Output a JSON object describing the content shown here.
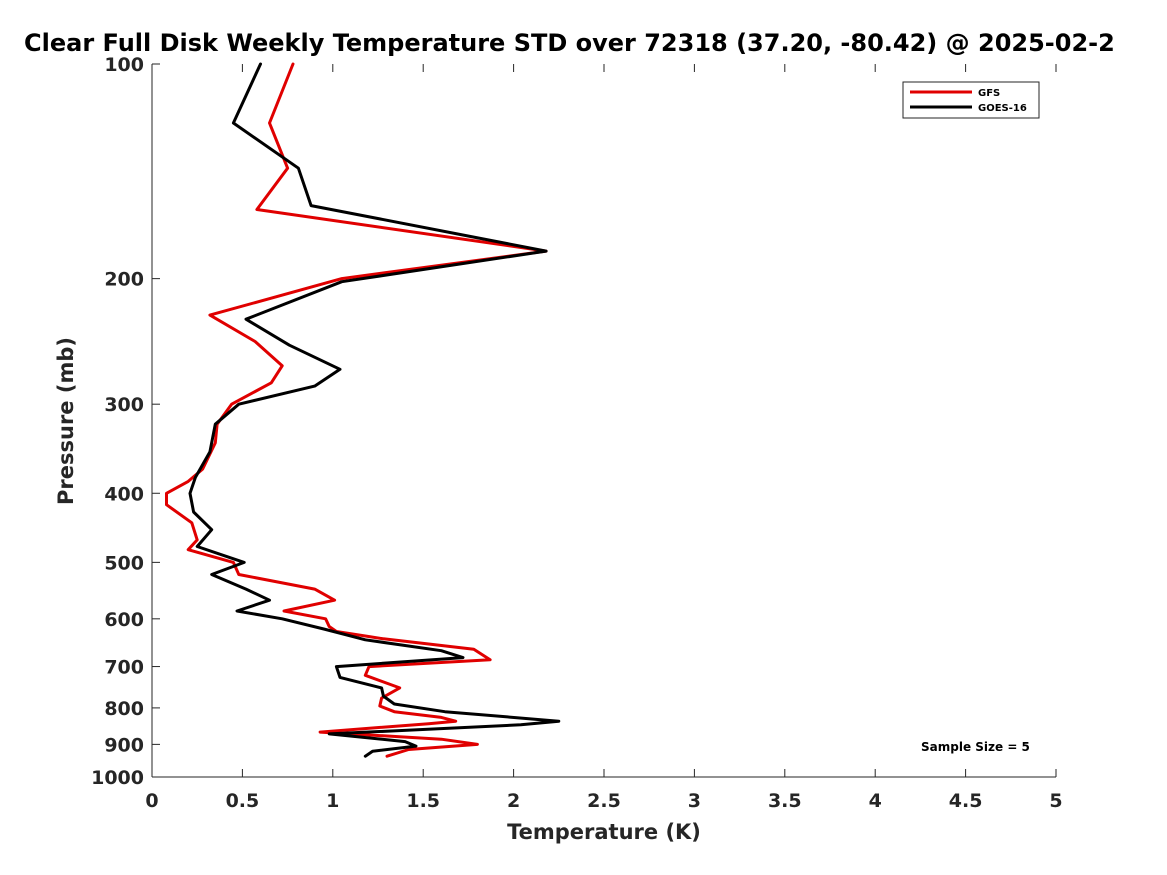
{
  "chart_data": {
    "type": "line",
    "title": "Clear Full Disk Weekly Temperature STD over 72318 (37.20, -80.42) @ 2025-02-2",
    "xlabel": "Temperature (K)",
    "ylabel": "Pressure (mb)",
    "xlim": [
      0,
      5
    ],
    "ylim": [
      100,
      1000
    ],
    "y_scale": "log",
    "y_direction": "reversed",
    "x_ticks": [
      0,
      0.5,
      1,
      1.5,
      2,
      2.5,
      3,
      3.5,
      4,
      4.5,
      5
    ],
    "x_tick_labels": [
      "0",
      "0.5",
      "1",
      "1.5",
      "2",
      "2.5",
      "3",
      "3.5",
      "4",
      "4.5",
      "5"
    ],
    "y_ticks": [
      100,
      200,
      300,
      400,
      500,
      600,
      700,
      800,
      900,
      1000
    ],
    "y_tick_labels": [
      "100",
      "200",
      "300",
      "400",
      "500",
      "600",
      "700",
      "800",
      "900",
      "1000"
    ],
    "grid": false,
    "legend_position": "top-right",
    "annotation": "Sample Size = 5",
    "series": [
      {
        "name": "GFS",
        "color": "#e00000",
        "points": [
          [
            0.78,
            100
          ],
          [
            0.65,
            121
          ],
          [
            0.75,
            140
          ],
          [
            0.58,
            160
          ],
          [
            2.18,
            183
          ],
          [
            1.05,
            200
          ],
          [
            0.32,
            225
          ],
          [
            0.57,
            245
          ],
          [
            0.72,
            265
          ],
          [
            0.66,
            280
          ],
          [
            0.44,
            300
          ],
          [
            0.36,
            320
          ],
          [
            0.35,
            340
          ],
          [
            0.28,
            370
          ],
          [
            0.2,
            385
          ],
          [
            0.08,
            400
          ],
          [
            0.08,
            415
          ],
          [
            0.22,
            440
          ],
          [
            0.25,
            465
          ],
          [
            0.2,
            480
          ],
          [
            0.45,
            500
          ],
          [
            0.48,
            520
          ],
          [
            0.9,
            545
          ],
          [
            1.01,
            565
          ],
          [
            0.73,
            585
          ],
          [
            0.96,
            600
          ],
          [
            0.98,
            615
          ],
          [
            1.02,
            625
          ],
          [
            1.28,
            640
          ],
          [
            1.78,
            662
          ],
          [
            1.87,
            685
          ],
          [
            1.2,
            700
          ],
          [
            1.18,
            720
          ],
          [
            1.37,
            750
          ],
          [
            1.27,
            775
          ],
          [
            1.26,
            795
          ],
          [
            1.34,
            810
          ],
          [
            1.6,
            825
          ],
          [
            1.68,
            835
          ],
          [
            1.53,
            842
          ],
          [
            0.93,
            865
          ],
          [
            1.6,
            885
          ],
          [
            1.8,
            900
          ],
          [
            1.42,
            915
          ],
          [
            1.3,
            935
          ]
        ]
      },
      {
        "name": "GOES-16",
        "color": "#000000",
        "points": [
          [
            0.6,
            100
          ],
          [
            0.45,
            121
          ],
          [
            0.81,
            140
          ],
          [
            0.88,
            158
          ],
          [
            2.18,
            183
          ],
          [
            1.05,
            202
          ],
          [
            0.52,
            228
          ],
          [
            0.76,
            248
          ],
          [
            1.04,
            268
          ],
          [
            0.9,
            283
          ],
          [
            0.48,
            300
          ],
          [
            0.35,
            320
          ],
          [
            0.32,
            350
          ],
          [
            0.24,
            380
          ],
          [
            0.21,
            400
          ],
          [
            0.23,
            425
          ],
          [
            0.33,
            450
          ],
          [
            0.25,
            475
          ],
          [
            0.51,
            500
          ],
          [
            0.33,
            520
          ],
          [
            0.52,
            545
          ],
          [
            0.65,
            565
          ],
          [
            0.47,
            585
          ],
          [
            0.72,
            600
          ],
          [
            0.95,
            620
          ],
          [
            1.18,
            642
          ],
          [
            1.6,
            665
          ],
          [
            1.72,
            680
          ],
          [
            1.02,
            700
          ],
          [
            1.04,
            725
          ],
          [
            1.27,
            750
          ],
          [
            1.28,
            770
          ],
          [
            1.34,
            790
          ],
          [
            1.62,
            810
          ],
          [
            2.25,
            835
          ],
          [
            2.04,
            845
          ],
          [
            0.98,
            870
          ],
          [
            1.4,
            892
          ],
          [
            1.46,
            905
          ],
          [
            1.22,
            920
          ],
          [
            1.18,
            935
          ]
        ]
      }
    ]
  }
}
